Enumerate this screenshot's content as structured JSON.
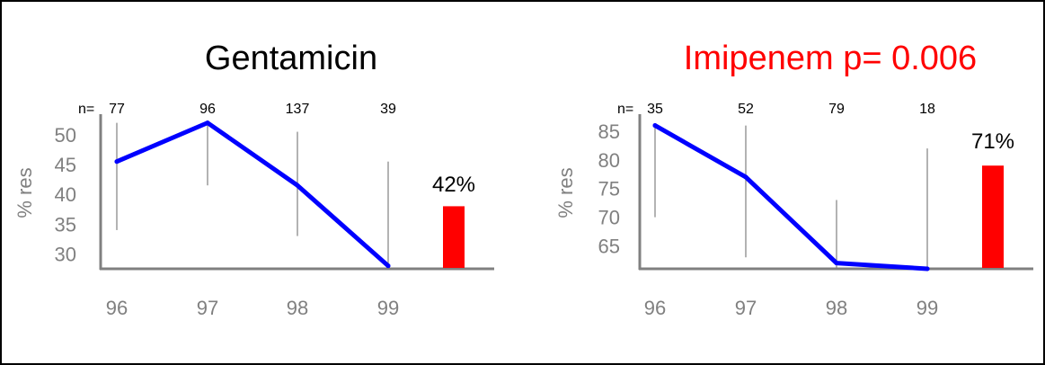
{
  "chart_data": [
    {
      "type": "line",
      "title": "Gentamicin",
      "title_color": "#000000",
      "ylabel": "% res",
      "n_prefix": "n=",
      "categories": [
        "96",
        "97",
        "98",
        "99"
      ],
      "n_labels": [
        "77",
        "96",
        "137",
        "39"
      ],
      "y_ticks": [
        "50",
        "45",
        "40",
        "35",
        "30"
      ],
      "ylim": [
        27.5,
        53
      ],
      "series": [
        {
          "values": [
            45.5,
            52,
            41.5,
            28
          ],
          "color": "#0000ff"
        }
      ],
      "error_bars": [
        [
          34,
          52
        ],
        [
          41.5,
          52
        ],
        [
          33,
          50.5
        ],
        [
          28,
          45.5
        ]
      ],
      "bar": {
        "value": 38,
        "label": "42%",
        "color": "#ff0000"
      }
    },
    {
      "type": "line",
      "title": "Imipenem  p= 0.006",
      "title_color": "#ff0000",
      "ylabel": "% res",
      "n_prefix": "n=",
      "categories": [
        "96",
        "97",
        "98",
        "99"
      ],
      "n_labels": [
        "35",
        "52",
        "79",
        "18"
      ],
      "y_ticks": [
        "85",
        "80",
        "75",
        "70",
        "65"
      ],
      "ylim": [
        61,
        87.5
      ],
      "series": [
        {
          "values": [
            86,
            77,
            62,
            61
          ],
          "color": "#0000ff"
        }
      ],
      "error_bars": [
        [
          70,
          86
        ],
        [
          63,
          86
        ],
        [
          61,
          73
        ],
        [
          61,
          82
        ]
      ],
      "bar": {
        "value": 79,
        "label": "71%",
        "color": "#ff0000"
      }
    }
  ]
}
